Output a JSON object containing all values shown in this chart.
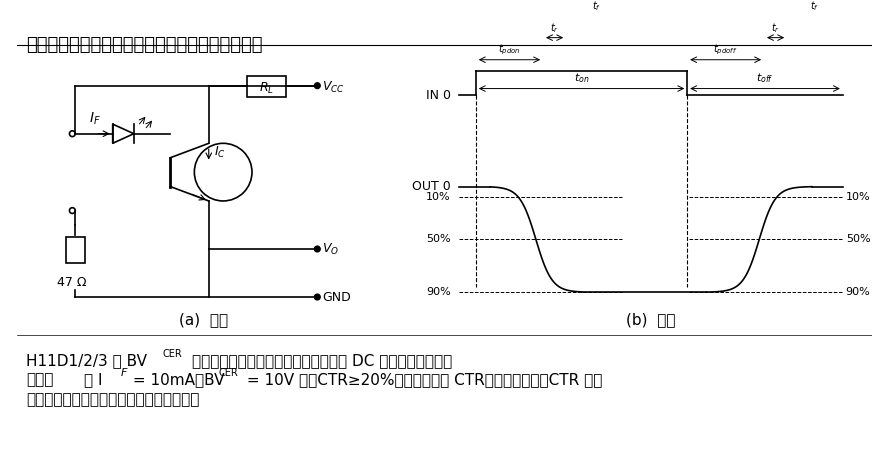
{
  "title_line": "用途：用于通信领域，并可代替继电器进行控制。",
  "caption_a": "(a)  电路",
  "caption_b": "(b)  波形",
  "bg_color": "#ffffff",
  "line_color": "#000000",
  "font_size_title": 13,
  "font_size_body": 11,
  "font_size_label": 9
}
